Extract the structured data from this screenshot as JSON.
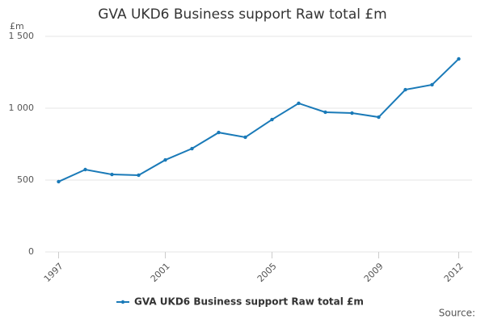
{
  "chart_data": {
    "type": "line",
    "title": "GVA UKD6 Business support Raw total £m",
    "y_unit": "£m",
    "source": "Source:",
    "x": [
      1997,
      1998,
      1999,
      2000,
      2001,
      2002,
      2003,
      2004,
      2005,
      2006,
      2007,
      2008,
      2009,
      2010,
      2011,
      2012
    ],
    "series": [
      {
        "name": "GVA UKD6 Business support Raw total £m",
        "color": "#1a7ab8",
        "values": [
          489,
          573,
          539,
          534,
          640,
          719,
          831,
          798,
          921,
          1034,
          972,
          966,
          938,
          1129,
          1163,
          1343
        ]
      }
    ],
    "xlim": [
      1996.5,
      2012.5
    ],
    "xticks": [
      1997,
      2001,
      2005,
      2009,
      2012
    ],
    "ylim": [
      0,
      1500
    ],
    "yticks": [
      0,
      500,
      {
        "value": 1000,
        "label": "1 000"
      },
      {
        "value": 1500,
        "label": "1 500"
      }
    ],
    "grid": true,
    "legend": "bottom"
  }
}
